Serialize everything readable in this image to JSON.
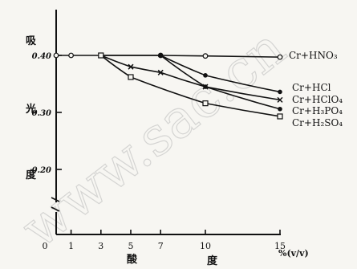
{
  "watermark": "www.sac.cn",
  "chart_data": {
    "type": "line",
    "xlabel_chars": [
      "酸",
      "度"
    ],
    "x_unit": "%(v/v)",
    "ylabel_chars": [
      "吸",
      "光",
      "度"
    ],
    "x_ticks": [
      0,
      1,
      3,
      5,
      7,
      10,
      15
    ],
    "y_ticks": [
      0.4,
      0.3,
      0.2
    ],
    "y_tick_labels": [
      "0.40",
      "0.30",
      "0.20"
    ],
    "xlim": [
      0,
      16
    ],
    "ylim": [
      0.1,
      0.46
    ],
    "grid": false,
    "series": [
      {
        "name": "Cr+HNO₃",
        "marker": "open-circle",
        "x": [
          0,
          1,
          3,
          7,
          10,
          15
        ],
        "y": [
          0.4,
          0.4,
          0.4,
          0.4,
          0.399,
          0.397
        ]
      },
      {
        "name": "Cr+HCl",
        "marker": "filled-circle",
        "x": [
          3,
          7,
          10,
          15
        ],
        "y": [
          0.4,
          0.4,
          0.365,
          0.336
        ]
      },
      {
        "name": "Cr+HClO₄",
        "marker": "cross",
        "x": [
          3,
          5,
          7,
          10,
          15
        ],
        "y": [
          0.4,
          0.38,
          0.37,
          0.345,
          0.322
        ]
      },
      {
        "name": "Cr+H₃PO₄",
        "marker": "filled-circle",
        "x": [
          7,
          10,
          15
        ],
        "y": [
          0.4,
          0.345,
          0.306
        ]
      },
      {
        "name": "Cr+H₂SO₄",
        "marker": "open-square",
        "x": [
          3,
          5,
          10,
          15
        ],
        "y": [
          0.4,
          0.362,
          0.316,
          0.293
        ]
      }
    ]
  }
}
